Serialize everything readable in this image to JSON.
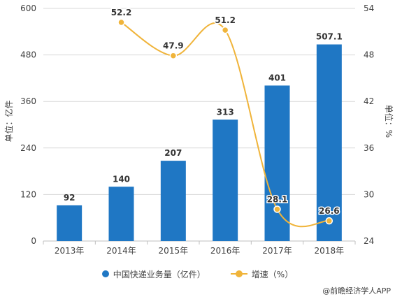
{
  "chart_data": {
    "type": "bar+line",
    "categories": [
      "2013年",
      "2014年",
      "2015年",
      "2016年",
      "2017年",
      "2018年"
    ],
    "series": [
      {
        "name": "中国快递业务量（亿件）",
        "type": "bar",
        "axis": "left",
        "values": [
          92,
          140,
          207,
          313,
          401,
          507.1
        ],
        "labels": [
          "92",
          "140",
          "207",
          "313",
          "401",
          "507.1"
        ]
      },
      {
        "name": "增速（%）",
        "type": "line",
        "axis": "right",
        "values": [
          null,
          52.2,
          47.9,
          51.2,
          28.1,
          26.6
        ],
        "labels": [
          "",
          "52.2",
          "47.9",
          "51.2",
          "28.1",
          "26.6"
        ]
      }
    ],
    "ylabel": "单位：亿件",
    "y2label": "单位：%",
    "ylim": [
      0,
      600
    ],
    "y2lim": [
      24,
      54
    ],
    "yticks": [
      "0",
      "120",
      "240",
      "360",
      "480",
      "600"
    ],
    "y2ticks": [
      "24",
      "30",
      "36",
      "42",
      "48",
      "54"
    ],
    "grid": true,
    "legend_position": "bottom"
  },
  "colors": {
    "bar": "#1f77c4",
    "line": "#f0b43a",
    "grid": "#d9d9d9",
    "text": "#404040"
  },
  "legend": {
    "bar_label": "中国快递业务量（亿件）",
    "line_label": "增速（%）"
  },
  "source": "@前瞻经济学人APP"
}
